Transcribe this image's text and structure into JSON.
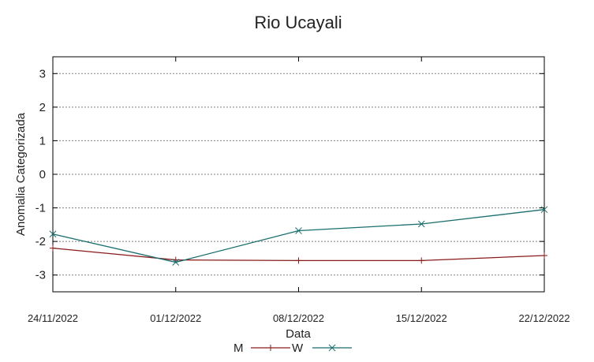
{
  "chart_data": {
    "type": "line",
    "title": "Rio Ucayali",
    "xlabel": "Data",
    "ylabel": "Anomalia Categorizada",
    "categories": [
      "24/11/2022",
      "01/12/2022",
      "08/12/2022",
      "15/12/2022",
      "22/12/2022"
    ],
    "ylim": [
      -3.5,
      3.5
    ],
    "yticks": [
      "3",
      "2",
      "1",
      "0",
      "-1",
      "-2",
      "-3"
    ],
    "grid": true,
    "legend_position": "bottom",
    "series": [
      {
        "name": "M",
        "values": [
          -2.2,
          -2.55,
          -2.57,
          -2.57,
          -2.42
        ],
        "color": "#8b1a1a",
        "marker": "plus"
      },
      {
        "name": "W",
        "values": [
          -1.78,
          -2.62,
          -1.68,
          -1.48,
          -1.05
        ],
        "color": "#1a6e6e",
        "marker": "cross"
      }
    ]
  }
}
